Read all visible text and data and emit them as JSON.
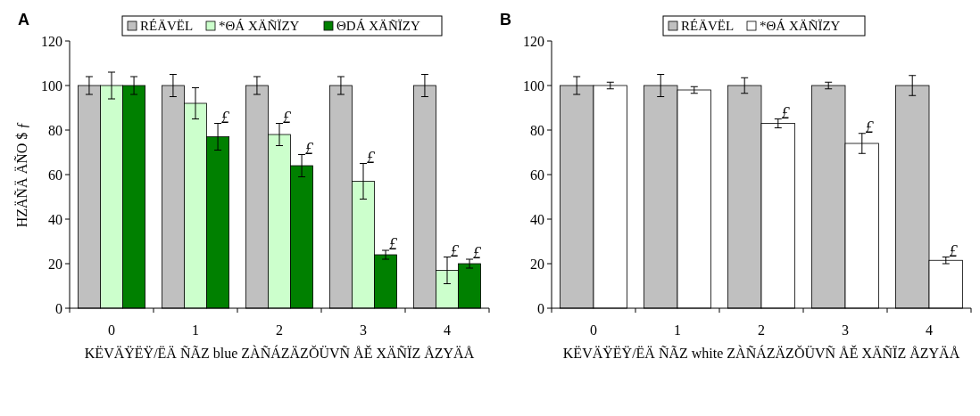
{
  "chart_data": [
    {
      "type": "bar",
      "title": "A",
      "ylabel": "HZÄÑÄ ÄÑO $ ƒ",
      "xlabel": "KËVÄŸËŸ/ËÄ ÑÃZ blue ZÀÑÁZÄZŎÜVÑ ÅĚ XÄÑÏZ ÅZYÄÅ",
      "categories": [
        "0",
        "1",
        "2",
        "3",
        "4"
      ],
      "series": [
        {
          "name": "RÉÄVËL",
          "color": "#c0c0c0",
          "values": [
            100,
            100,
            100,
            100,
            100
          ],
          "errors": [
            4,
            5,
            4,
            4,
            5
          ]
        },
        {
          "name": "*ΘÁ XÄÑÏZY",
          "color": "#ccffcc",
          "values": [
            100,
            92,
            78,
            57,
            17
          ],
          "errors": [
            6,
            7,
            5,
            8,
            6
          ],
          "value_labels": [
            null,
            null,
            "£",
            "£",
            "£"
          ]
        },
        {
          "name": "ΘDÁ XÄÑÏZY",
          "color": "#008000",
          "values": [
            100,
            77,
            64,
            24,
            20
          ],
          "errors": [
            4,
            6,
            5,
            2,
            2
          ],
          "value_labels": [
            null,
            "£",
            "£",
            "£",
            "£"
          ]
        }
      ],
      "ylim": [
        0,
        120
      ],
      "yticks": [
        0,
        20,
        40,
        60,
        80,
        100,
        120
      ],
      "legend": "top"
    },
    {
      "type": "bar",
      "title": "B",
      "xlabel": "KËVÄŸËŸ/ËÄ ÑÃZ white ZÀÑÁZÄZŎÜVÑ ÅĚ XÄÑÏZ ÅZYÄÅ",
      "categories": [
        "0",
        "1",
        "2",
        "3",
        "4"
      ],
      "series": [
        {
          "name": "RÉÄVËL",
          "color": "#c0c0c0",
          "values": [
            100,
            100,
            100,
            100,
            100
          ],
          "errors": [
            4,
            5,
            3.5,
            1.5,
            4.5
          ]
        },
        {
          "name": "*ΘÁ XÄÑÏZY",
          "color": "#ffffff",
          "values": [
            100,
            98,
            83,
            74,
            21.5
          ],
          "errors": [
            1.5,
            1.5,
            2,
            4.5,
            1.5
          ],
          "value_labels": [
            null,
            null,
            "£",
            "£",
            "£"
          ]
        }
      ],
      "ylim": [
        0,
        120
      ],
      "yticks": [
        0,
        20,
        40,
        60,
        80,
        100,
        120
      ],
      "legend": "top"
    }
  ]
}
